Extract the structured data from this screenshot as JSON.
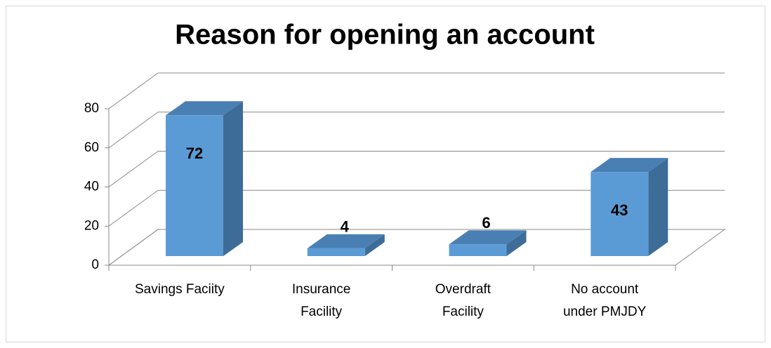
{
  "chart_data": {
    "type": "bar3d",
    "title": "Reason for opening an account",
    "categories": [
      "Savings Faciity",
      "Insurance Facility",
      "Overdraft Facility",
      "No account under PMJDY"
    ],
    "values": [
      72,
      4,
      6,
      43
    ],
    "color": "#5b9bd5",
    "ylim": [
      0,
      80
    ],
    "yticks": [
      0,
      20,
      40,
      60,
      80
    ],
    "grid": true
  }
}
